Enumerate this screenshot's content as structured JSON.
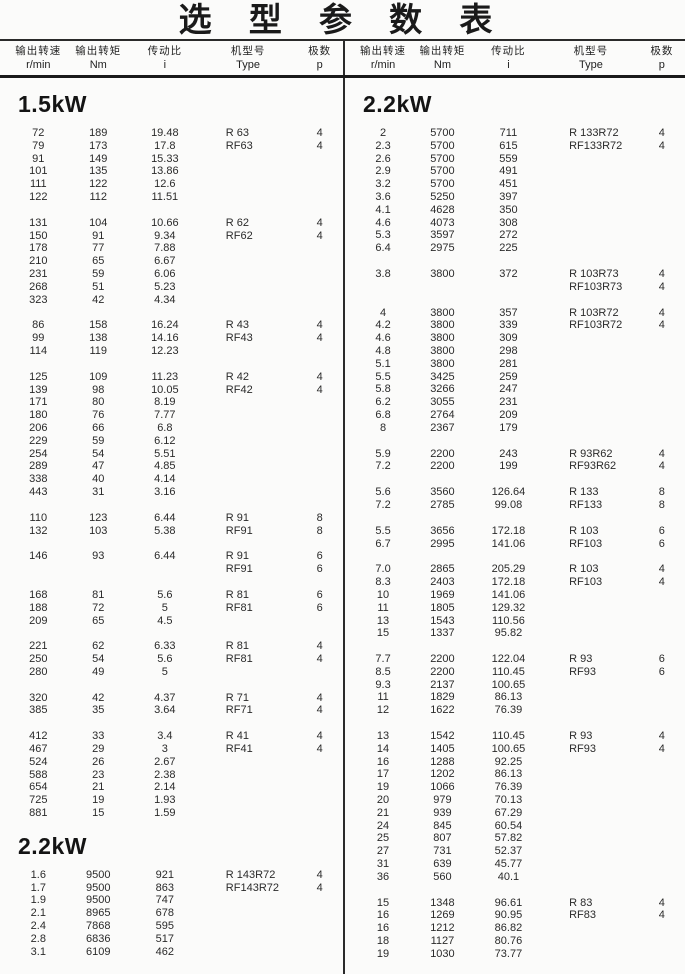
{
  "page": {
    "title": "选 型 参 数 表"
  },
  "table_headers": {
    "cn": [
      "输出转速",
      "输出转矩",
      "传动比",
      "机型号",
      "极数"
    ],
    "units": [
      "r/min",
      "Nm",
      "i",
      "Type",
      "p"
    ]
  },
  "panes": [
    {
      "side": "left",
      "sections": [
        {
          "power": "1.5kW",
          "groups": [
            [
              [
                "72",
                "189",
                "19.48",
                "R 63",
                "4"
              ],
              [
                "79",
                "173",
                "17.8",
                "RF63",
                "4"
              ],
              [
                "91",
                "149",
                "15.33",
                "",
                ""
              ],
              [
                "101",
                "135",
                "13.86",
                "",
                ""
              ],
              [
                "111",
                "122",
                "12.6",
                "",
                ""
              ],
              [
                "122",
                "112",
                "11.51",
                "",
                ""
              ]
            ],
            [
              [
                "131",
                "104",
                "10.66",
                "R 62",
                "4"
              ],
              [
                "150",
                "91",
                "9.34",
                "RF62",
                "4"
              ],
              [
                "178",
                "77",
                "7.88",
                "",
                ""
              ],
              [
                "210",
                "65",
                "6.67",
                "",
                ""
              ],
              [
                "231",
                "59",
                "6.06",
                "",
                ""
              ],
              [
                "268",
                "51",
                "5.23",
                "",
                ""
              ],
              [
                "323",
                "42",
                "4.34",
                "",
                ""
              ]
            ],
            [
              [
                "86",
                "158",
                "16.24",
                "R 43",
                "4"
              ],
              [
                "99",
                "138",
                "14.16",
                "RF43",
                "4"
              ],
              [
                "114",
                "119",
                "12.23",
                "",
                ""
              ]
            ],
            [
              [
                "125",
                "109",
                "11.23",
                "R 42",
                "4"
              ],
              [
                "139",
                "98",
                "10.05",
                "RF42",
                "4"
              ],
              [
                "171",
                "80",
                "8.19",
                "",
                ""
              ],
              [
                "180",
                "76",
                "7.77",
                "",
                ""
              ],
              [
                "206",
                "66",
                "6.8",
                "",
                ""
              ],
              [
                "229",
                "59",
                "6.12",
                "",
                ""
              ],
              [
                "254",
                "54",
                "5.51",
                "",
                ""
              ],
              [
                "289",
                "47",
                "4.85",
                "",
                ""
              ],
              [
                "338",
                "40",
                "4.14",
                "",
                ""
              ],
              [
                "443",
                "31",
                "3.16",
                "",
                ""
              ]
            ],
            [
              [
                "110",
                "123",
                "6.44",
                "R 91",
                "8"
              ],
              [
                "132",
                "103",
                "5.38",
                "RF91",
                "8"
              ]
            ],
            [
              [
                "146",
                "93",
                "6.44",
                "R 91",
                "6"
              ],
              [
                "",
                "",
                "",
                "RF91",
                "6"
              ]
            ],
            [
              [
                "168",
                "81",
                "5.6",
                "R 81",
                "6"
              ],
              [
                "188",
                "72",
                "5",
                "RF81",
                "6"
              ],
              [
                "209",
                "65",
                "4.5",
                "",
                ""
              ]
            ],
            [
              [
                "221",
                "62",
                "6.33",
                "R 81",
                "4"
              ],
              [
                "250",
                "54",
                "5.6",
                "RF81",
                "4"
              ],
              [
                "280",
                "49",
                "5",
                "",
                ""
              ]
            ],
            [
              [
                "320",
                "42",
                "4.37",
                "R 71",
                "4"
              ],
              [
                "385",
                "35",
                "3.64",
                "RF71",
                "4"
              ]
            ],
            [
              [
                "412",
                "33",
                "3.4",
                "R 41",
                "4"
              ],
              [
                "467",
                "29",
                "3",
                "RF41",
                "4"
              ],
              [
                "524",
                "26",
                "2.67",
                "",
                ""
              ],
              [
                "588",
                "23",
                "2.38",
                "",
                ""
              ],
              [
                "654",
                "21",
                "2.14",
                "",
                ""
              ],
              [
                "725",
                "19",
                "1.93",
                "",
                ""
              ],
              [
                "881",
                "15",
                "1.59",
                "",
                ""
              ]
            ]
          ]
        },
        {
          "power": "2.2kW",
          "groups": [
            [
              [
                "1.6",
                "9500",
                "921",
                "R 143R72",
                "4"
              ],
              [
                "1.7",
                "9500",
                "863",
                "RF143R72",
                "4"
              ],
              [
                "1.9",
                "9500",
                "747",
                "",
                ""
              ],
              [
                "2.1",
                "8965",
                "678",
                "",
                ""
              ],
              [
                "2.4",
                "7868",
                "595",
                "",
                ""
              ],
              [
                "2.8",
                "6836",
                "517",
                "",
                ""
              ],
              [
                "3.1",
                "6109",
                "462",
                "",
                ""
              ]
            ]
          ]
        }
      ]
    },
    {
      "side": "right",
      "sections": [
        {
          "power": "2.2kW",
          "groups": [
            [
              [
                "2",
                "5700",
                "711",
                "R 133R72",
                "4"
              ],
              [
                "2.3",
                "5700",
                "615",
                "RF133R72",
                "4"
              ],
              [
                "2.6",
                "5700",
                "559",
                "",
                ""
              ],
              [
                "2.9",
                "5700",
                "491",
                "",
                ""
              ],
              [
                "3.2",
                "5700",
                "451",
                "",
                ""
              ],
              [
                "3.6",
                "5250",
                "397",
                "",
                ""
              ],
              [
                "4.1",
                "4628",
                "350",
                "",
                ""
              ],
              [
                "4.6",
                "4073",
                "308",
                "",
                ""
              ],
              [
                "5.3",
                "3597",
                "272",
                "",
                ""
              ],
              [
                "6.4",
                "2975",
                "225",
                "",
                ""
              ]
            ],
            [
              [
                "3.8",
                "3800",
                "372",
                "R 103R73",
                "4"
              ],
              [
                "",
                "",
                "",
                "RF103R73",
                "4"
              ]
            ],
            [
              [
                "4",
                "3800",
                "357",
                "R 103R72",
                "4"
              ],
              [
                "4.2",
                "3800",
                "339",
                "RF103R72",
                "4"
              ],
              [
                "4.6",
                "3800",
                "309",
                "",
                ""
              ],
              [
                "4.8",
                "3800",
                "298",
                "",
                ""
              ],
              [
                "5.1",
                "3800",
                "281",
                "",
                ""
              ],
              [
                "5.5",
                "3425",
                "259",
                "",
                ""
              ],
              [
                "5.8",
                "3266",
                "247",
                "",
                ""
              ],
              [
                "6.2",
                "3055",
                "231",
                "",
                ""
              ],
              [
                "6.8",
                "2764",
                "209",
                "",
                ""
              ],
              [
                "8",
                "2367",
                "179",
                "",
                ""
              ]
            ],
            [
              [
                "5.9",
                "2200",
                "243",
                "R 93R62",
                "4"
              ],
              [
                "7.2",
                "2200",
                "199",
                "RF93R62",
                "4"
              ]
            ],
            [
              [
                "5.6",
                "3560",
                "126.64",
                "R 133",
                "8"
              ],
              [
                "7.2",
                "2785",
                "99.08",
                "RF133",
                "8"
              ]
            ],
            [
              [
                "5.5",
                "3656",
                "172.18",
                "R 103",
                "6"
              ],
              [
                "6.7",
                "2995",
                "141.06",
                "RF103",
                "6"
              ]
            ],
            [
              [
                "7.0",
                "2865",
                "205.29",
                "R 103",
                "4"
              ],
              [
                "8.3",
                "2403",
                "172.18",
                "RF103",
                "4"
              ],
              [
                "10",
                "1969",
                "141.06",
                "",
                ""
              ],
              [
                "11",
                "1805",
                "129.32",
                "",
                ""
              ],
              [
                "13",
                "1543",
                "110.56",
                "",
                ""
              ],
              [
                "15",
                "1337",
                "95.82",
                "",
                ""
              ]
            ],
            [
              [
                "7.7",
                "2200",
                "122.04",
                "R 93",
                "6"
              ],
              [
                "8.5",
                "2200",
                "110.45",
                "RF93",
                "6"
              ],
              [
                "9.3",
                "2137",
                "100.65",
                "",
                ""
              ],
              [
                "11",
                "1829",
                "86.13",
                "",
                ""
              ],
              [
                "12",
                "1622",
                "76.39",
                "",
                ""
              ]
            ],
            [
              [
                "13",
                "1542",
                "110.45",
                "R 93",
                "4"
              ],
              [
                "14",
                "1405",
                "100.65",
                "RF93",
                "4"
              ],
              [
                "16",
                "1288",
                "92.25",
                "",
                ""
              ],
              [
                "17",
                "1202",
                "86.13",
                "",
                ""
              ],
              [
                "19",
                "1066",
                "76.39",
                "",
                ""
              ],
              [
                "20",
                "979",
                "70.13",
                "",
                ""
              ],
              [
                "21",
                "939",
                "67.29",
                "",
                ""
              ],
              [
                "24",
                "845",
                "60.54",
                "",
                ""
              ],
              [
                "25",
                "807",
                "57.82",
                "",
                ""
              ],
              [
                "27",
                "731",
                "52.37",
                "",
                ""
              ],
              [
                "31",
                "639",
                "45.77",
                "",
                ""
              ],
              [
                "36",
                "560",
                "40.1",
                "",
                ""
              ]
            ],
            [
              [
                "15",
                "1348",
                "96.61",
                "R 83",
                "4"
              ],
              [
                "16",
                "1269",
                "90.95",
                "RF83",
                "4"
              ],
              [
                "16",
                "1212",
                "86.82",
                "",
                ""
              ],
              [
                "18",
                "1127",
                "80.76",
                "",
                ""
              ],
              [
                "19",
                "1030",
                "73.77",
                "",
                ""
              ]
            ]
          ]
        }
      ]
    }
  ]
}
